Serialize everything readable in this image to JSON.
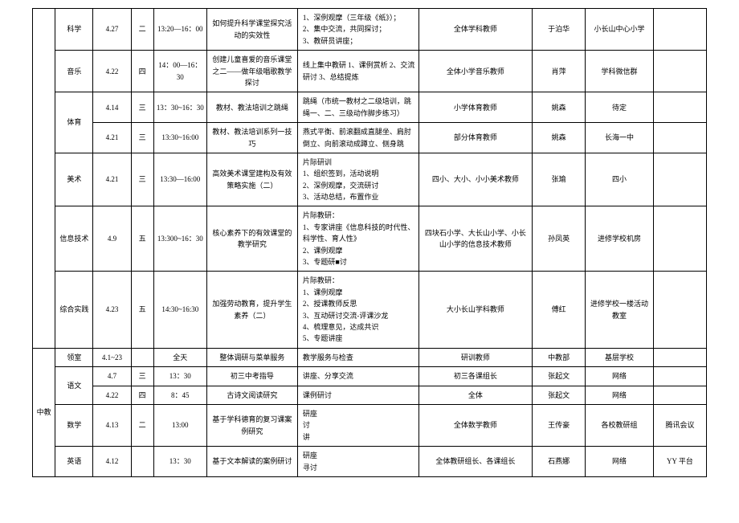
{
  "groups": [
    {
      "category": "",
      "rows": [
        {
          "subject": "科学",
          "date": "4.27",
          "day": "二",
          "time": "13:20—16：00",
          "topic": "如何提升科学课堂探究活动的实效性",
          "content": "1、深例观摩（三年级《纸》）；\n2、集中交流，共同探讨；\n3、教研员讲座；",
          "attendees": "全体学科教师",
          "host": "于泊华",
          "location": "小长山中心小学",
          "note": ""
        },
        {
          "subject": "音乐",
          "date": "4.22",
          "day": "四",
          "time": "14：00—16：30",
          "topic": "创建儿童喜爱的音乐课堂之二——做年级唱歌教学探讨",
          "content": "线上集中教研 1、课例赏析 2、交流研讨 3、总结提炼",
          "attendees": "全体小学音乐教师",
          "host": "肖萍",
          "location": "学科微信群",
          "note": ""
        },
        {
          "subject": "体育",
          "date": "4.14",
          "day": "三",
          "time": "13：30~16：30",
          "topic": "教材、教法培训之跳绳",
          "content": "跳绳（市统一教材之二级培训，跳绳一、二、三级动作脚步练习）",
          "attendees": "小学体育教师",
          "host": "姚森",
          "location": "待定",
          "note": "",
          "rowspan": 2
        },
        {
          "date": "4.21",
          "day": "三",
          "time": "13:30~16:00",
          "topic": "教材、教法培训系列一技巧",
          "content": "燕式平衡、前滚翻成直腿坐、肩肘倒立、向前滚动成蹲立、侧身跳",
          "attendees": "部分体育教师",
          "host": "姚森",
          "location": "长海一中",
          "note": ""
        },
        {
          "subject": "美术",
          "date": "4.21",
          "day": "三",
          "time": "13:30—16:00",
          "topic": "高效美术课堂建构及有效策略实施（二）",
          "content": "片际研训\n1、组织签到，活动说明\n2、深例观摩，交流研讨\n3、活动总结，布置作业",
          "attendees": "四小、大小、小小美术教师",
          "host": "张瑜",
          "location": "四小",
          "note": ""
        },
        {
          "subject": "信息技术",
          "date": "4.9",
          "day": "五",
          "time": "13:300~16：30",
          "topic": "核心素养下的有效课堂的教学研究",
          "content": "片际教研：\n1、专家讲座《信息科技的时代性、科学性、育人性》\n2、课例观摩\n3、专题研■讨",
          "attendees": "四块石小学、大长山小学、小长山小学的信息技术教师",
          "host": "孙凤英",
          "location": "进修学校机房",
          "note": ""
        },
        {
          "subject": "综合实践",
          "date": "4.23",
          "day": "五",
          "time": "14:30~16:30",
          "topic": "加强劳动教育，提升学生素养（二）",
          "content": "片际教研：\n1、课例观摩\n2、授课教师反思\n3、互动研讨交流-评课沙龙\n4、梳理意见，达成共识\n5、专题讲座",
          "attendees": "大小长山学科教师",
          "host": "傅红",
          "location": "进修学校一楼活动教室",
          "note": ""
        }
      ]
    },
    {
      "category": "中教",
      "rows": [
        {
          "subject": "领室",
          "date": "4.1~23",
          "day": "",
          "time": "全天",
          "topic": "整体调研与菜单服务",
          "content": "教学服务与检查",
          "attendees": "研训教师",
          "host": "中教部",
          "location": "基层学校",
          "note": ""
        },
        {
          "subject": "语文",
          "date": "4.7",
          "day": "三",
          "time": "13：30",
          "topic": "初三中考指导",
          "content": "讲座、分享交流",
          "attendees": "初三各课组长",
          "host": "张起文",
          "location": "网络",
          "note": "",
          "rowspan": 2
        },
        {
          "date": "4.22",
          "day": "四",
          "time": "8：45",
          "topic": "古诗文阅读研究",
          "content": "课例研讨",
          "attendees": "全体",
          "host": "张起文",
          "location": "网络",
          "note": ""
        },
        {
          "subject": "数学",
          "date": "4.13",
          "day": "二",
          "time": "13:00",
          "topic": "基于学科德育的复习课案例研究",
          "content": "研座\n讨\n讲",
          "attendees": "全体数学教师",
          "host": "王传豪",
          "location": "各校教研组",
          "note": "腾讯会议"
        },
        {
          "subject": "英语",
          "date": "4.12",
          "day": "",
          "time": "13：30",
          "topic": "基于文本解读的案例研讨",
          "content": "研座\n寻讨",
          "attendees": "全体教研组长、各课组长",
          "host": "石燕娜",
          "location": "网络",
          "note": "YY 平台"
        }
      ]
    }
  ]
}
